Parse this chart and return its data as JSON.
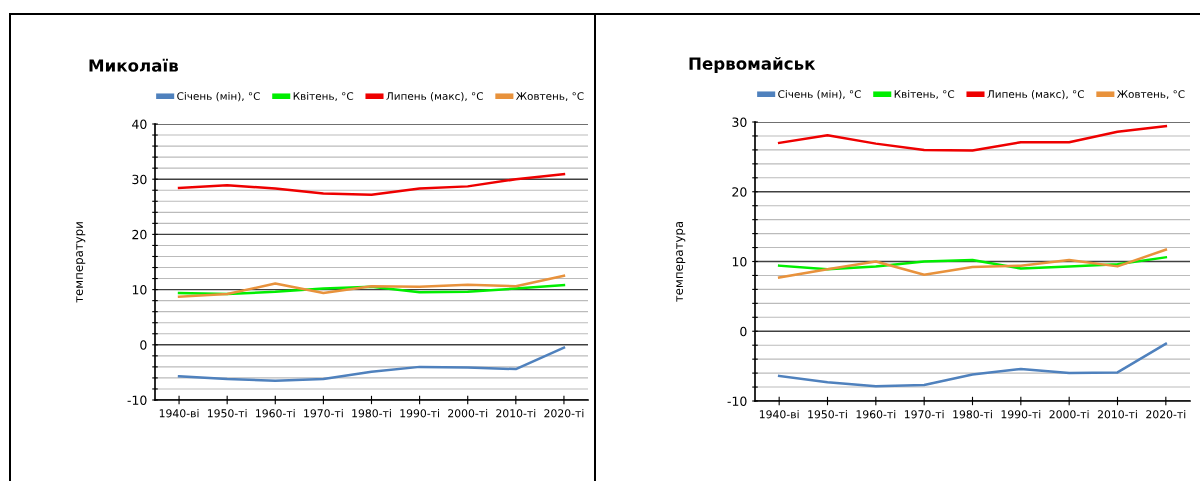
{
  "chart_data": [
    {
      "type": "line",
      "title": "Миколаїв",
      "ylabel": "температури",
      "legend": "top",
      "grid": "y",
      "categories": [
        "1940-ві",
        "1950-ті",
        "1960-ті",
        "1970-ті",
        "1980-ті",
        "1990-ті",
        "2000-ті",
        "2010-ті",
        "2020-ті"
      ],
      "ylim": [
        -10,
        40
      ],
      "yticks": [
        -10,
        {
          "value": -8,
          "label": null
        },
        {
          "value": -6,
          "label": null
        },
        {
          "value": -4,
          "label": null
        },
        {
          "value": -2,
          "label": null
        },
        0,
        {
          "value": 2,
          "label": null
        },
        {
          "value": 4,
          "label": null
        },
        {
          "value": 6,
          "label": null
        },
        {
          "value": 8,
          "label": null
        },
        10,
        {
          "value": 12,
          "label": null
        },
        {
          "value": 14,
          "label": null
        },
        {
          "value": 16,
          "label": null
        },
        {
          "value": 18,
          "label": null
        },
        20,
        {
          "value": 22,
          "label": null
        },
        {
          "value": 24,
          "label": null
        },
        {
          "value": 26,
          "label": null
        },
        {
          "value": 28,
          "label": null
        },
        30,
        {
          "value": 32,
          "label": null
        },
        {
          "value": 34,
          "label": null
        },
        {
          "value": 36,
          "label": null
        },
        {
          "value": 38,
          "label": null
        },
        40
      ],
      "series": [
        {
          "name": "Січень (мін), °C",
          "color": "#4f81bd",
          "values": [
            -5.7,
            -6.2,
            -6.5,
            -6.2,
            -4.9,
            -4.0,
            -4.1,
            -4.4,
            -0.5
          ]
        },
        {
          "name": "Квітень, °C",
          "color": "#00ee00",
          "values": [
            9.4,
            9.2,
            9.6,
            10.2,
            10.5,
            9.5,
            9.6,
            10.2,
            10.8
          ]
        },
        {
          "name": "Липень (макс), °C",
          "color": "#ee0000",
          "values": [
            28.4,
            28.9,
            28.3,
            27.4,
            27.2,
            28.3,
            28.7,
            30.0,
            30.9
          ]
        },
        {
          "name": "Жовтень, °C",
          "color": "#e8923c",
          "values": [
            8.7,
            9.2,
            11.1,
            9.4,
            10.6,
            10.5,
            10.9,
            10.6,
            12.5
          ]
        }
      ]
    },
    {
      "type": "line",
      "title": "Первомайськ",
      "ylabel": "температура",
      "legend": "top",
      "grid": "y",
      "categories": [
        "1940-ві",
        "1950-ті",
        "1960-ті",
        "1970-ті",
        "1980-ті",
        "1990-ті",
        "2000-ті",
        "2010-ті",
        "2020-ті"
      ],
      "ylim": [
        -10,
        30
      ],
      "yticks": [
        -10,
        {
          "value": -8,
          "label": null
        },
        {
          "value": -6,
          "label": null
        },
        {
          "value": -4,
          "label": null
        },
        {
          "value": -2,
          "label": null
        },
        0,
        {
          "value": 2,
          "label": null
        },
        {
          "value": 4,
          "label": null
        },
        {
          "value": 6,
          "label": null
        },
        {
          "value": 8,
          "label": null
        },
        10,
        {
          "value": 12,
          "label": null
        },
        {
          "value": 14,
          "label": null
        },
        {
          "value": 16,
          "label": null
        },
        {
          "value": 18,
          "label": null
        },
        20,
        {
          "value": 22,
          "label": null
        },
        {
          "value": 24,
          "label": null
        },
        {
          "value": 26,
          "label": null
        },
        {
          "value": 28,
          "label": null
        },
        30
      ],
      "series": [
        {
          "name": "Січень (мін), °C",
          "color": "#4f81bd",
          "values": [
            -6.4,
            -7.3,
            -7.9,
            -7.7,
            -6.2,
            -5.4,
            -6.0,
            -5.9,
            -1.8
          ]
        },
        {
          "name": "Квітень, °C",
          "color": "#00ee00",
          "values": [
            9.4,
            8.9,
            9.3,
            10.0,
            10.2,
            9.0,
            9.3,
            9.6,
            10.6
          ]
        },
        {
          "name": "Липень (макс), °C",
          "color": "#ee0000",
          "values": [
            27.0,
            28.1,
            26.9,
            26.0,
            25.9,
            27.1,
            27.1,
            28.6,
            29.4
          ]
        },
        {
          "name": "Жовтень, °C",
          "color": "#e8923c",
          "values": [
            7.7,
            8.9,
            10.0,
            8.1,
            9.2,
            9.4,
            10.2,
            9.3,
            11.7
          ]
        }
      ]
    }
  ]
}
